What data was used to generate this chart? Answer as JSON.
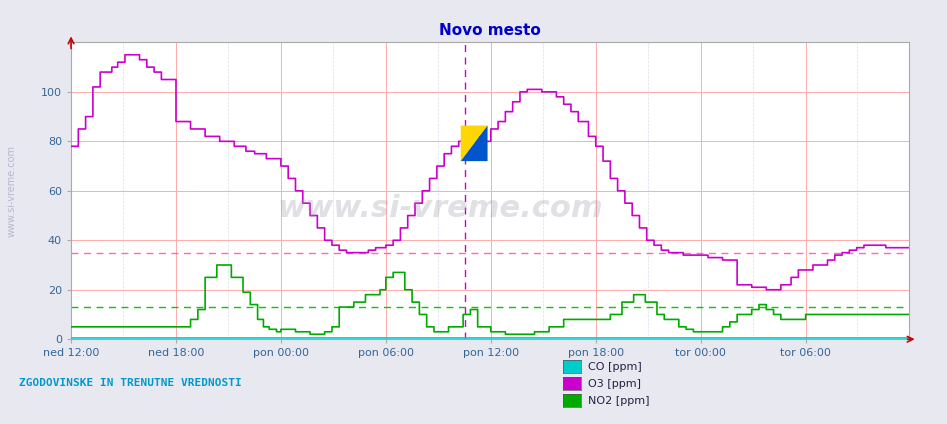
{
  "title": "Novo mesto",
  "title_color": "#0000cc",
  "title_fontsize": 11,
  "bg_color": "#e8e8f0",
  "plot_bg_color": "#ffffff",
  "ylim": [
    0,
    120
  ],
  "xtick_labels": [
    "ned 12:00",
    "ned 18:00",
    "pon 00:00",
    "pon 06:00",
    "pon 12:00",
    "pon 18:00",
    "tor 00:00",
    "tor 06:00"
  ],
  "n_points": 576,
  "hline_o3": 35,
  "hline_no2": 13,
  "hline_o3_color": "#ff69b4",
  "hline_no2_color": "#00cc00",
  "vline_color": "#cc00cc",
  "co_color": "#00cccc",
  "o3_color": "#cc00cc",
  "no2_color": "#00aa00",
  "grid_major_color": "#ffaaaa",
  "watermark_color": "#888899",
  "bottom_text": "ZGODOVINSKE IN TRENUTNE VREDNOSTI",
  "bottom_text_color": "#0099cc",
  "legend_items": [
    "CO [ppm]",
    "O3 [ppm]",
    "NO2 [ppm]"
  ],
  "legend_colors": [
    "#00cccc",
    "#cc00cc",
    "#00aa00"
  ],
  "left_label": "www.si-vreme.com",
  "left_label_color": "#aaaacc"
}
